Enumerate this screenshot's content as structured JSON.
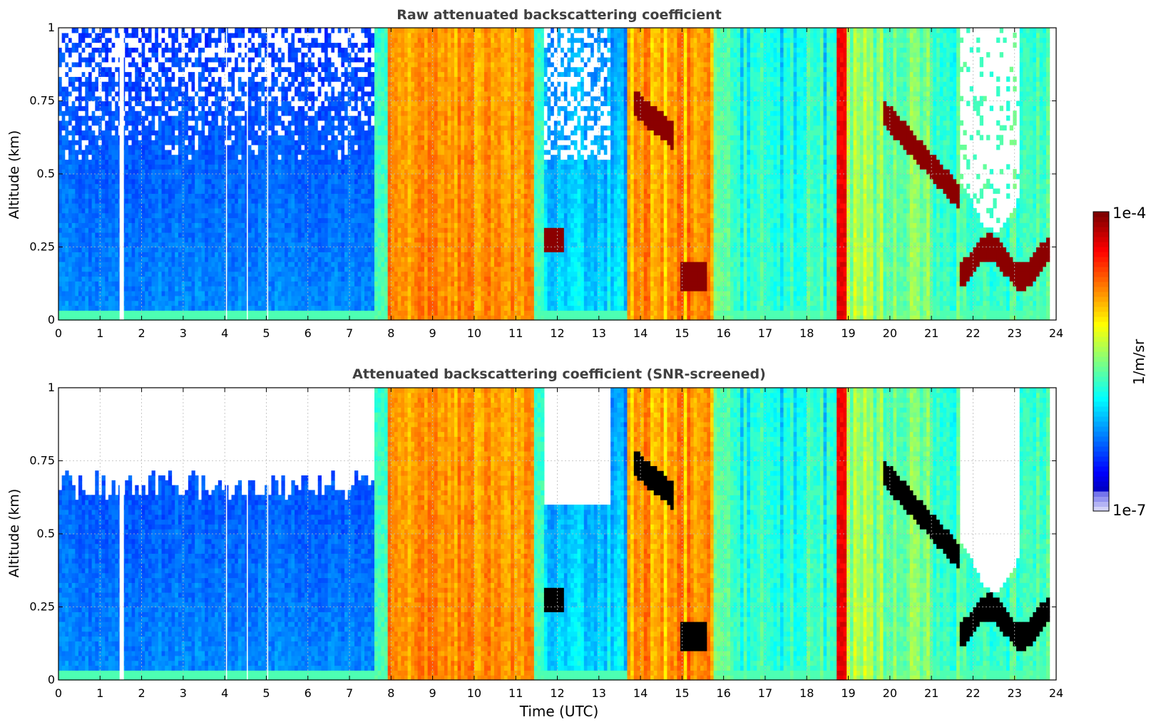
{
  "chart_data": [
    {
      "type": "heatmap",
      "title": "Raw attenuated backscattering coefficient",
      "xlabel": "",
      "ylabel": "Altitude (km)",
      "xlim": [
        0,
        24
      ],
      "ylim": [
        0,
        1
      ],
      "x_ticks": [
        "0",
        "1",
        "2",
        "3",
        "4",
        "5",
        "6",
        "7",
        "8",
        "9",
        "10",
        "11",
        "12",
        "13",
        "14",
        "15",
        "16",
        "17",
        "18",
        "19",
        "20",
        "21",
        "22",
        "23",
        "24"
      ],
      "y_ticks": [
        "0",
        "0.25",
        "0.5",
        "0.75",
        "1"
      ],
      "grid": true,
      "gaps_x_utc": [
        1.47,
        4.03,
        4.53,
        5.02
      ],
      "data_end_utc": 23.8,
      "screened": false
    },
    {
      "type": "heatmap",
      "title": "Attenuated backscattering coefficient (SNR-screened)",
      "xlabel": "Time (UTC)",
      "ylabel": "Altitude (km)",
      "xlim": [
        0,
        24
      ],
      "ylim": [
        0,
        1
      ],
      "x_ticks": [
        "0",
        "1",
        "2",
        "3",
        "4",
        "5",
        "6",
        "7",
        "8",
        "9",
        "10",
        "11",
        "12",
        "13",
        "14",
        "15",
        "16",
        "17",
        "18",
        "19",
        "20",
        "21",
        "22",
        "23",
        "24"
      ],
      "y_ticks": [
        "0",
        "0.25",
        "0.5",
        "0.75",
        "1"
      ],
      "grid": true,
      "gaps_x_utc": [
        1.47,
        4.03,
        4.53,
        5.02
      ],
      "data_end_utc": 23.8,
      "screened": true
    }
  ],
  "colorbar": {
    "label": "1/m/sr",
    "max_label": "1e-4",
    "min_label": "1e-7",
    "scale": "log",
    "colormap": "jet",
    "saturation_color": "#000000"
  }
}
